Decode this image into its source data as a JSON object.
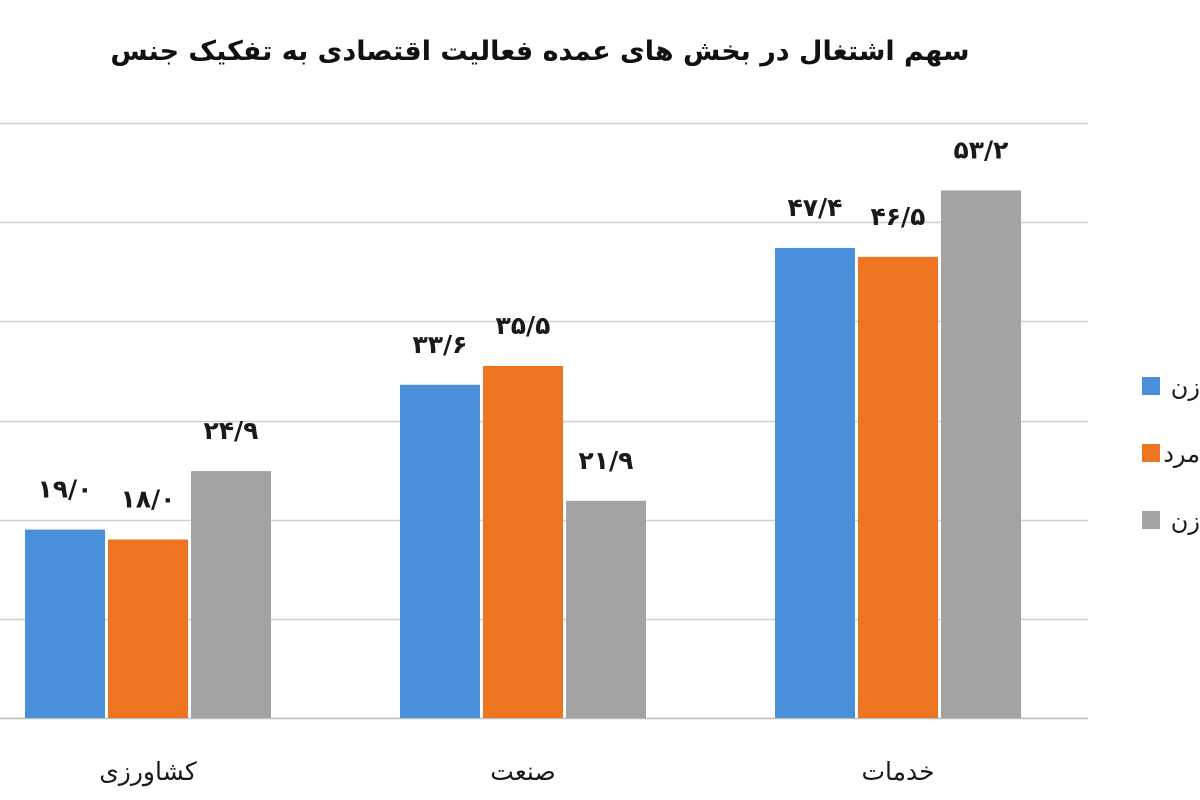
{
  "chart_data": {
    "type": "bar",
    "title": "سهم اشتغال در بخش های عمده فعالیت اقتصادی به تفکیک جنس",
    "categories": [
      "کشاورزی",
      "صنعت",
      "خدمات"
    ],
    "series": [
      {
        "name": "زن",
        "color": "#4a8fd9",
        "values": [
          19.0,
          33.6,
          47.4
        ],
        "labels": [
          "۱۹/۰",
          "۳۳/۶",
          "۴۷/۴"
        ]
      },
      {
        "name": "مرد",
        "color": "#ed7420",
        "values": [
          18.0,
          35.5,
          46.5
        ],
        "labels": [
          "۱۸/۰",
          "۳۵/۵",
          "۴۶/۵"
        ]
      },
      {
        "name": "زن",
        "color": "#a3a3a3",
        "values": [
          24.9,
          21.9,
          53.2
        ],
        "labels": [
          "۲۴/۹",
          "۲۱/۹",
          "۵۳/۲"
        ]
      }
    ],
    "ylim": [
      0,
      60
    ],
    "grid": true,
    "legend": "right"
  }
}
